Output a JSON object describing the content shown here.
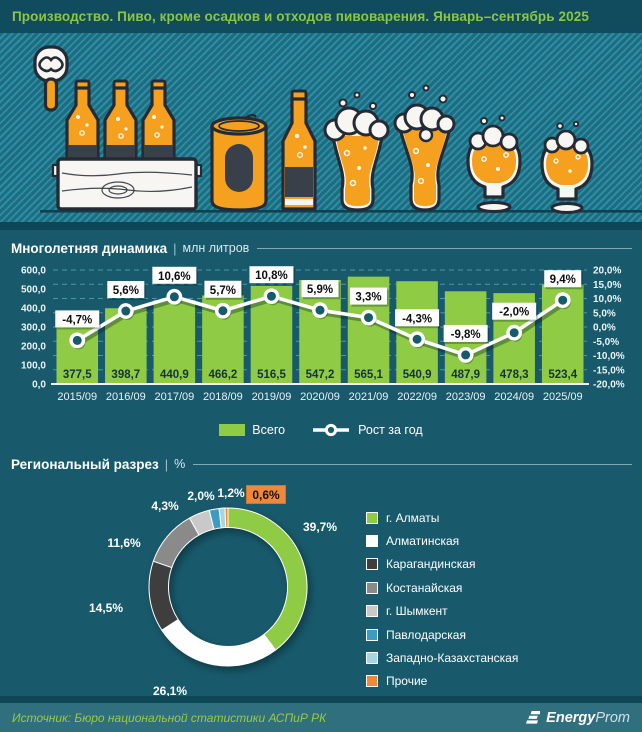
{
  "header": {
    "title": "Производство. Пиво, кроме осадков и отходов пивоварения. Январь–сентябрь 2025"
  },
  "sections": {
    "dynamics": {
      "title": "Многолетняя динамика",
      "unit": "млн литров"
    },
    "regional": {
      "title": "Региональный разрез",
      "unit": "%"
    }
  },
  "chart_data": [
    {
      "type": "bar",
      "title": "Многолетняя динамика (млн литров)",
      "ylabel": "млн литров",
      "y2label": "Рост за год, %",
      "grid": "dashed-horizontal",
      "legend_position": "bottom",
      "categories": [
        "2015/09",
        "2016/09",
        "2017/09",
        "2018/09",
        "2019/09",
        "2020/09",
        "2021/09",
        "2022/09",
        "2023/09",
        "2024/09",
        "2025/09"
      ],
      "series": [
        {
          "name": "Всего",
          "kind": "bar",
          "color": "#8FCB45",
          "values": [
            377.5,
            398.7,
            440.9,
            466.2,
            516.5,
            547.2,
            565.1,
            540.9,
            487.9,
            478.3,
            523.4
          ],
          "labels": [
            "377,5",
            "398,7",
            "440,9",
            "466,2",
            "516,5",
            "547,2",
            "565,1",
            "540,9",
            "487,9",
            "478,3",
            "523,4"
          ]
        },
        {
          "name": "Рост за год",
          "kind": "line",
          "color": "#FFFFFF",
          "values": [
            -4.7,
            5.6,
            10.6,
            5.7,
            10.8,
            5.9,
            3.3,
            -4.3,
            -9.8,
            -2.0,
            9.4
          ],
          "labels": [
            "-4,7%",
            "5,6%",
            "10,6%",
            "5,7%",
            "10,8%",
            "5,9%",
            "3,3%",
            "-4,3%",
            "-9,8%",
            "-2,0%",
            "9,4%"
          ]
        }
      ],
      "left_axis": {
        "min": 0,
        "max": 600,
        "ticks": [
          "600,0",
          "500,0",
          "400,0",
          "300,0",
          "200,0",
          "100,0",
          "0,0"
        ]
      },
      "right_axis": {
        "min": -20,
        "max": 20,
        "ticks": [
          "20,0%",
          "15,0%",
          "10,0%",
          "5,0%",
          "0,0%",
          "-5,0%",
          "-10,0%",
          "-15,0%",
          "-20,0%"
        ]
      }
    },
    {
      "type": "donut",
      "title": "Региональный разрез (%)",
      "legend_position": "right",
      "slices": [
        {
          "label": "г. Алматы",
          "value": 39.7,
          "text": "39,7%",
          "color": "#8FCB45"
        },
        {
          "label": "Алматинская",
          "value": 26.1,
          "text": "26,1%",
          "color": "#FFFFFF"
        },
        {
          "label": "Карагандинская",
          "value": 14.5,
          "text": "14,5%",
          "color": "#3E3E3E"
        },
        {
          "label": "Костанайская",
          "value": 11.6,
          "text": "11,6%",
          "color": "#8A8A8A"
        },
        {
          "label": "г. Шымкент",
          "value": 4.3,
          "text": "4,3%",
          "color": "#C9C9C9"
        },
        {
          "label": "Павлодарская",
          "value": 2.0,
          "text": "2,0%",
          "color": "#3D9CC2"
        },
        {
          "label": "Западно-Казахстанская",
          "value": 1.2,
          "text": "1,2%",
          "color": "#A9D4E1"
        },
        {
          "label": "Прочие",
          "value": 0.6,
          "text": "0,6%",
          "color": "#F0883B",
          "highlight": true
        }
      ]
    }
  ],
  "footer": {
    "source": "Источник: Бюро национальной статистики АСПиР РК",
    "brand_bold": "Energy",
    "brand_light": "Prom"
  }
}
